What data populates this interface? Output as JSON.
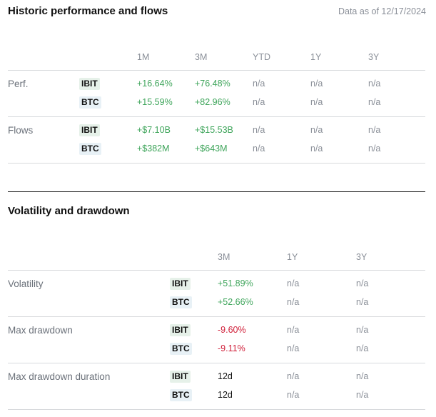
{
  "hist": {
    "title": "Historic performance and flows",
    "as_of": "Data as of 12/17/2024",
    "columns": [
      "1M",
      "3M",
      "YTD",
      "1Y",
      "3Y"
    ],
    "groups": [
      {
        "label": "Perf.",
        "rows": [
          {
            "ticker": "IBIT",
            "values": [
              "+16.64%",
              "+76.48%",
              "n/a",
              "n/a",
              "n/a"
            ]
          },
          {
            "ticker": "BTC",
            "values": [
              "+15.59%",
              "+82.96%",
              "n/a",
              "n/a",
              "n/a"
            ]
          }
        ]
      },
      {
        "label": "Flows",
        "rows": [
          {
            "ticker": "IBIT",
            "values": [
              "+$7.10B",
              "+$15.53B",
              "n/a",
              "n/a",
              "n/a"
            ]
          },
          {
            "ticker": "BTC",
            "values": [
              "+$382M",
              "+$643M",
              "n/a",
              "n/a",
              "n/a"
            ]
          }
        ]
      }
    ]
  },
  "vol": {
    "title": "Volatility and drawdown",
    "columns": [
      "3M",
      "1Y",
      "3Y"
    ],
    "groups": [
      {
        "label": "Volatility",
        "rows": [
          {
            "ticker": "IBIT",
            "values": [
              "+51.89%",
              "n/a",
              "n/a"
            ]
          },
          {
            "ticker": "BTC",
            "values": [
              "+52.66%",
              "n/a",
              "n/a"
            ]
          }
        ]
      },
      {
        "label": "Max drawdown",
        "rows": [
          {
            "ticker": "IBIT",
            "values": [
              "-9.60%",
              "n/a",
              "n/a"
            ]
          },
          {
            "ticker": "BTC",
            "values": [
              "-9.11%",
              "n/a",
              "n/a"
            ]
          }
        ]
      },
      {
        "label": "Max drawdown duration",
        "rows": [
          {
            "ticker": "IBIT",
            "values": [
              "12d",
              "n/a",
              "n/a"
            ]
          },
          {
            "ticker": "BTC",
            "values": [
              "12d",
              "n/a",
              "n/a"
            ]
          }
        ]
      }
    ]
  },
  "colors": {
    "positive": "#3fa55b",
    "negative": "#d0203a",
    "muted": "#8a8f98",
    "ibit_tag": "#e6f1e9",
    "btc_tag": "#e8f1f6"
  }
}
